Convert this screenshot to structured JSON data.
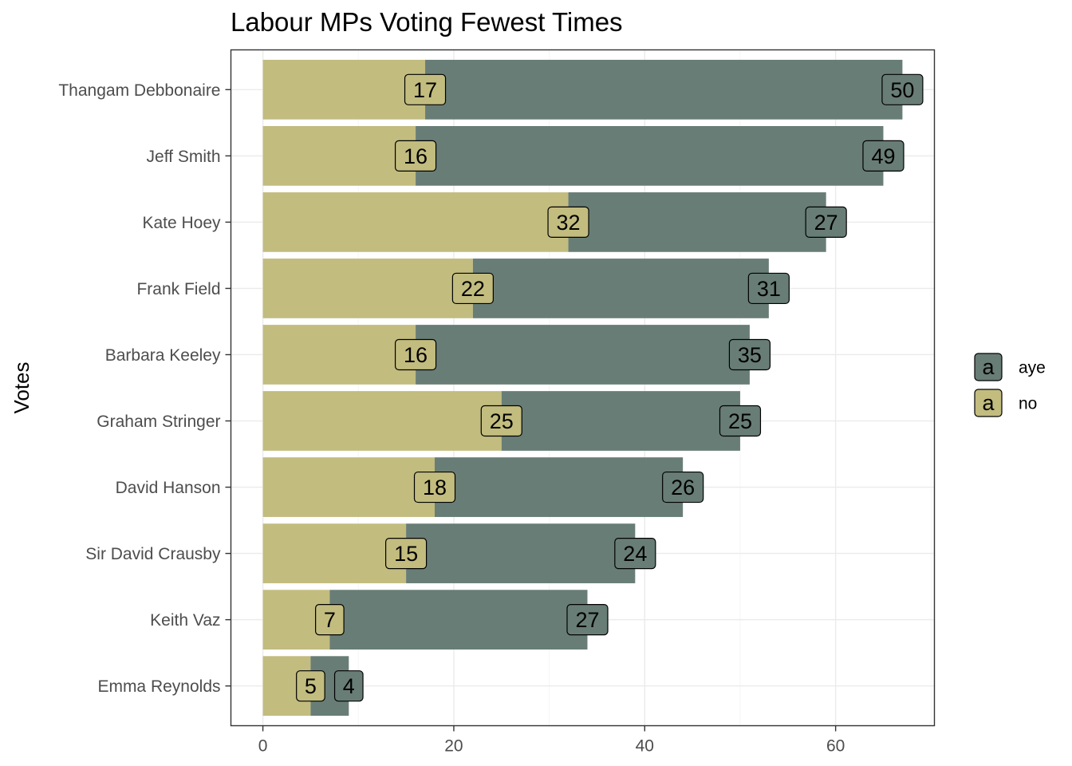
{
  "chart_data": {
    "type": "bar",
    "orientation": "horizontal",
    "stacked": true,
    "title": "Labour MPs Voting Fewest Times",
    "xlabel": "",
    "ylabel": "Votes",
    "categories": [
      "Thangam Debbonaire",
      "Jeff Smith",
      "Kate Hoey",
      "Frank Field",
      "Barbara Keeley",
      "Graham Stringer",
      "David Hanson",
      "Sir David Crausby",
      "Keith Vaz",
      "Emma Reynolds"
    ],
    "series": [
      {
        "name": "no",
        "color": "#c2bc7f",
        "values": [
          17,
          16,
          32,
          22,
          16,
          25,
          18,
          15,
          7,
          5
        ]
      },
      {
        "name": "aye",
        "color": "#687d76",
        "values": [
          50,
          49,
          27,
          31,
          35,
          25,
          26,
          24,
          27,
          4
        ]
      }
    ],
    "xlim": [
      -3.35,
      70.35
    ],
    "xticks": [
      "0",
      "20",
      "40",
      "60"
    ],
    "grid": true,
    "legend": {
      "placement": "right",
      "key_glyph": "a",
      "entries": [
        {
          "label": "aye",
          "color": "#687d76"
        },
        {
          "label": "no",
          "color": "#c2bc7f"
        }
      ]
    },
    "colors": {
      "panel_border": "#333333",
      "grid_major": "#ebebeb",
      "grid_minor": "#f5f5f5",
      "tick": "#333333"
    }
  }
}
